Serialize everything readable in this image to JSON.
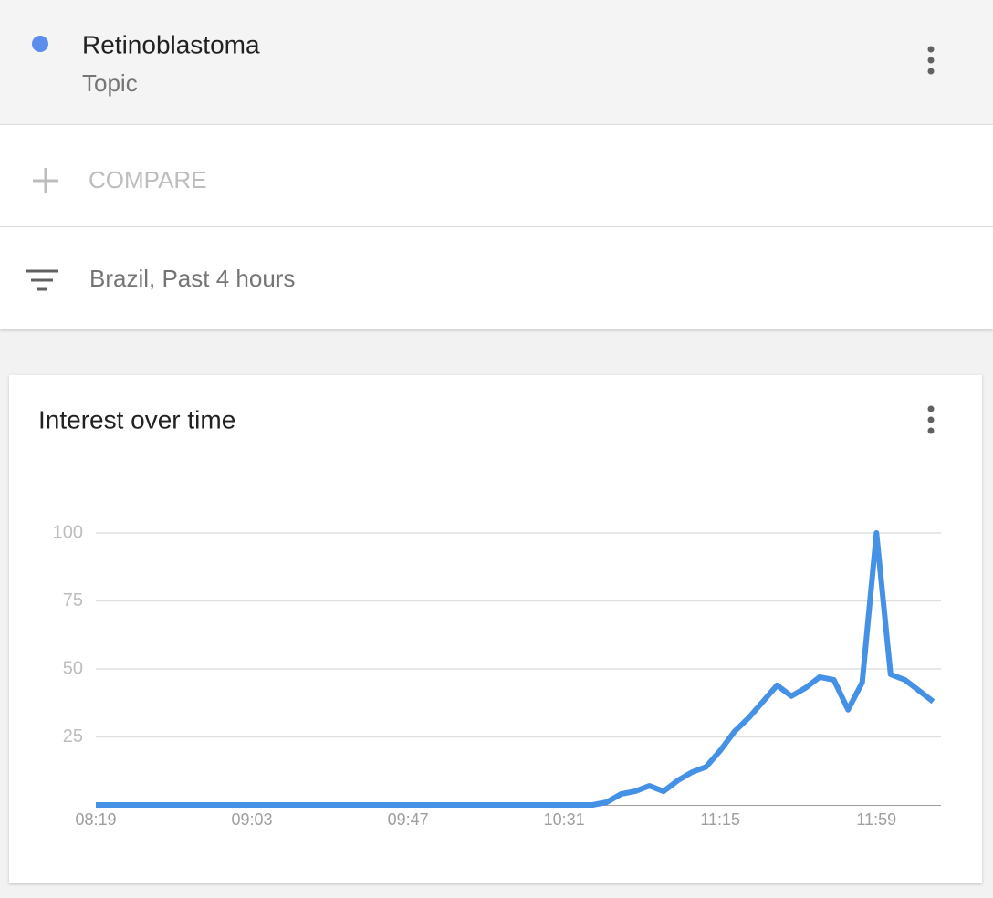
{
  "header": {
    "title": "Retinoblastoma",
    "subtitle": "Topic"
  },
  "compare": {
    "label": "COMPARE"
  },
  "filter": {
    "label": "Brazil, Past 4 hours"
  },
  "card": {
    "title": "Interest over time"
  },
  "chart_data": {
    "type": "line",
    "categories": [
      "08:19",
      null,
      null,
      null,
      null,
      null,
      null,
      null,
      null,
      null,
      null,
      "09:03",
      null,
      null,
      null,
      null,
      null,
      null,
      null,
      null,
      null,
      null,
      "09:47",
      null,
      null,
      null,
      null,
      null,
      null,
      null,
      null,
      null,
      null,
      "10:31",
      null,
      null,
      null,
      null,
      null,
      null,
      null,
      null,
      null,
      null,
      "11:15",
      null,
      null,
      null,
      null,
      null,
      null,
      null,
      null,
      null,
      null,
      "11:59",
      null,
      null,
      null,
      null
    ],
    "values": [
      0,
      0,
      0,
      0,
      0,
      0,
      0,
      0,
      0,
      0,
      0,
      0,
      0,
      0,
      0,
      0,
      0,
      0,
      0,
      0,
      0,
      0,
      0,
      0,
      0,
      0,
      0,
      0,
      0,
      0,
      0,
      0,
      0,
      0,
      0,
      0,
      1,
      4,
      5,
      7,
      5,
      9,
      12,
      14,
      20,
      27,
      32,
      38,
      44,
      40,
      43,
      47,
      46,
      35,
      45,
      100,
      48,
      46,
      42,
      38
    ],
    "color": "#4591e6",
    "ylim": [
      0,
      100
    ],
    "yticks": [
      25,
      50,
      75,
      100
    ],
    "grid": true
  }
}
